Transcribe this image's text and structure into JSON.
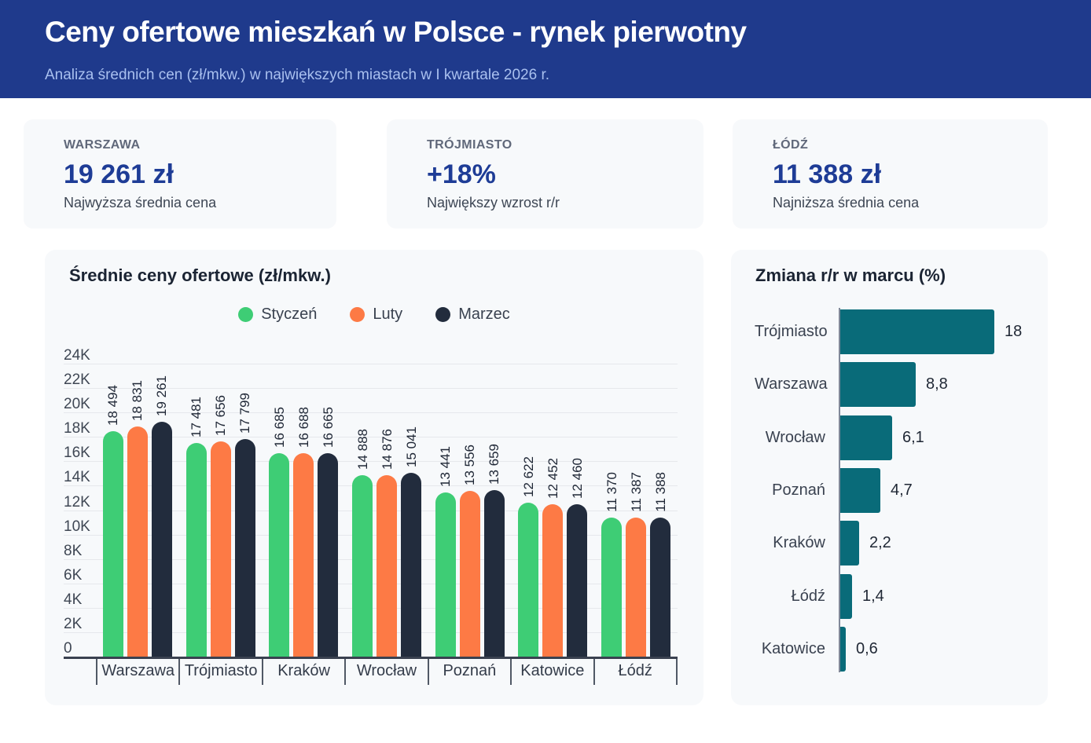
{
  "header": {
    "title": "Ceny ofertowe mieszkań w Polsce - rynek pierwotny",
    "subtitle": "Analiza średnich cen (zł/mkw.) w największych miastach w I kwartale 2026 r."
  },
  "cards": [
    {
      "city": "WARSZAWA",
      "value": "19 261 zł",
      "caption": "Najwyższa średnia cena"
    },
    {
      "city": "TRÓJMIASTO",
      "value": "+18%",
      "caption": "Największy wzrost r/r"
    },
    {
      "city": "ŁÓDŹ",
      "value": "11 388 zł",
      "caption": "Najniższa średnia cena"
    }
  ],
  "colors": {
    "header_bg": "#1f3a8c",
    "subtitle_text": "#a9c0ef",
    "card_bg": "#f7f9fb",
    "card_value": "#1e3c96",
    "green": "#3ecd75",
    "orange": "#fd7a45",
    "navy": "#222c3d",
    "teal": "#096b79"
  },
  "chart_data": [
    {
      "type": "bar",
      "title": "Średnie ceny ofertowe (zł/mkw.)",
      "categories": [
        "Warszawa",
        "Trójmiasto",
        "Kraków",
        "Wrocław",
        "Poznań",
        "Katowice",
        "Łódź"
      ],
      "series": [
        {
          "name": "Styczeń",
          "color": "#3ecd75",
          "values": [
            18494,
            17481,
            16685,
            14888,
            13441,
            12622,
            11370
          ],
          "labels": [
            "18 494",
            "17 481",
            "16 685",
            "14 888",
            "13 441",
            "12 622",
            "11 370"
          ]
        },
        {
          "name": "Luty",
          "color": "#fd7a45",
          "values": [
            18831,
            17656,
            16688,
            14876,
            13556,
            12452,
            11387
          ],
          "labels": [
            "18 831",
            "17 656",
            "16 688",
            "14 876",
            "13 556",
            "12 452",
            "11 387"
          ]
        },
        {
          "name": "Marzec",
          "color": "#222c3d",
          "values": [
            19261,
            17799,
            16665,
            15041,
            13659,
            12460,
            11388
          ],
          "labels": [
            "19 261",
            "17 799",
            "16 665",
            "15 041",
            "13 659",
            "12 460",
            "11 388"
          ]
        }
      ],
      "ylim": [
        0,
        24000
      ],
      "ytick_step": 2000,
      "ytick_labels": [
        "0",
        "2K",
        "4K",
        "6K",
        "8K",
        "10K",
        "12K",
        "14K",
        "16K",
        "18K",
        "20K",
        "22K",
        "24K"
      ],
      "grid": true,
      "legend_position": "top-center"
    },
    {
      "type": "bar",
      "orientation": "horizontal",
      "title": "Zmiana r/r w marcu (%)",
      "categories": [
        "Trójmiasto",
        "Warszawa",
        "Wrocław",
        "Poznań",
        "Kraków",
        "Łódź",
        "Katowice"
      ],
      "values": [
        18,
        8.8,
        6.1,
        4.7,
        2.2,
        1.4,
        0.6
      ],
      "labels": [
        "18",
        "8,8",
        "6,1",
        "4,7",
        "2,2",
        "1,4",
        "0,6"
      ],
      "xlim": [
        0,
        18
      ],
      "bar_color": "#096b79",
      "grid": false,
      "legend_position": "none"
    }
  ]
}
